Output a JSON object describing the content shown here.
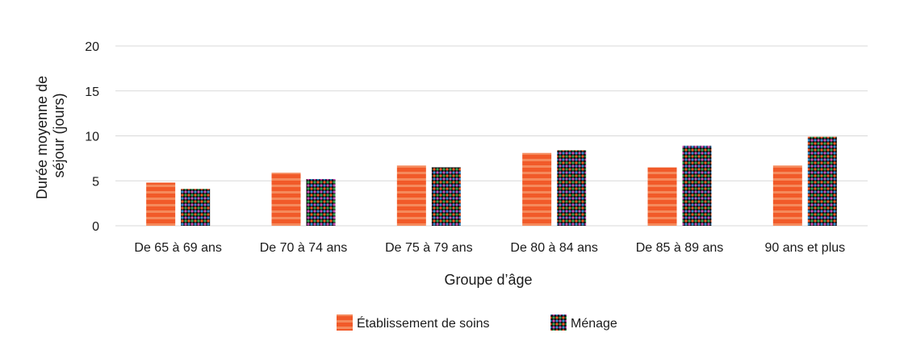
{
  "chart_data": {
    "type": "bar",
    "title": "",
    "xlabel": "Groupe d’âge",
    "ylabel_lines": [
      "Durée moyenne de",
      "séjour (jours)"
    ],
    "ylim": [
      0,
      20
    ],
    "yticks": [
      0,
      5,
      10,
      15,
      20
    ],
    "grid": true,
    "legend_position": "bottom",
    "categories": [
      "De 65 à 69 ans",
      "De 70 à 74 ans",
      "De 75 à 79 ans",
      "De 80 à 84 ans",
      "De 85 à 89 ans",
      "90 ans et plus"
    ],
    "series": [
      {
        "name": "Établissement de soins",
        "color": "#f15a29",
        "pattern": "horizontal-stripes",
        "values": [
          4.8,
          5.9,
          6.7,
          8.1,
          6.5,
          6.7
        ]
      },
      {
        "name": "Ménage",
        "color": "#000000",
        "pattern": "colored-dots",
        "values": [
          4.1,
          5.2,
          6.5,
          8.4,
          8.9,
          9.9
        ]
      }
    ]
  }
}
